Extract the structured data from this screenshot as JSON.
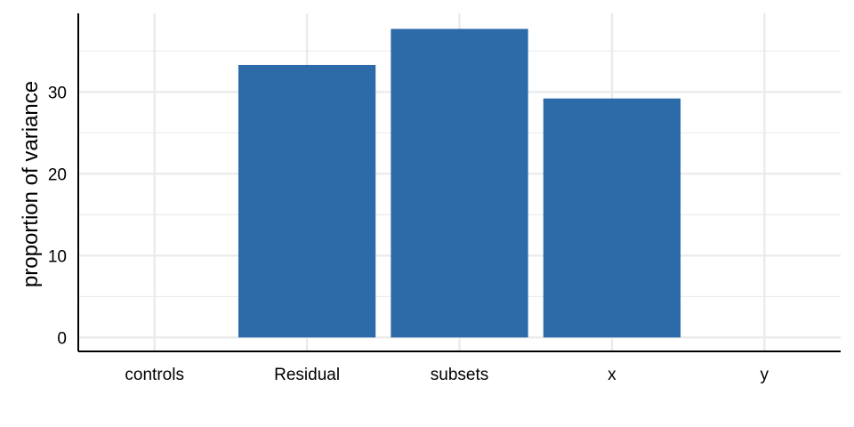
{
  "chart_data": {
    "type": "bar",
    "title": "",
    "xlabel": "",
    "ylabel": "proportion of variance",
    "categories": [
      "controls",
      "Residual",
      "subsets",
      "x",
      "y"
    ],
    "values": [
      0,
      33.3,
      37.7,
      29.2,
      0
    ],
    "ylim": [
      -1.7,
      39.6
    ],
    "yticks": [
      0,
      10,
      20,
      30
    ],
    "ytick_labels": [
      "0",
      "10",
      "20",
      "30"
    ],
    "grid": true,
    "legend": "none",
    "bar_color": "#2c6aa8",
    "grid_color": "#ebebeb"
  }
}
